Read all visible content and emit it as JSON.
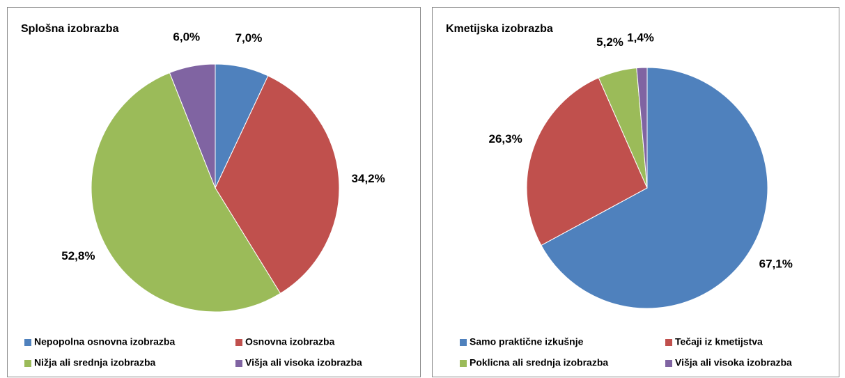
{
  "chart_data": [
    {
      "type": "pie",
      "title": "Splošna izobrazba",
      "categories": [
        "Nepopolna osnovna izobrazba",
        "Osnovna izobrazba",
        "Nižja ali srednja izobrazba",
        "Višja ali visoka izobrazba"
      ],
      "values": [
        7.0,
        34.2,
        52.8,
        6.0
      ],
      "value_labels": [
        "7,0%",
        "34,2%",
        "52,8%",
        "6,0%"
      ],
      "colors": [
        "#4f81bd",
        "#c0504d",
        "#9bbb59",
        "#8064a2"
      ]
    },
    {
      "type": "pie",
      "title": "Kmetijska izobrazba",
      "categories": [
        "Samo praktične izkušnje",
        "Tečaji iz kmetijstva",
        "Poklicna ali srednja izobrazba",
        "Višja ali visoka izobrazba"
      ],
      "values": [
        67.1,
        26.3,
        5.2,
        1.4
      ],
      "value_labels": [
        "67,1%",
        "26,3%",
        "5,2%",
        "1,4%"
      ],
      "colors": [
        "#4f81bd",
        "#c0504d",
        "#9bbb59",
        "#8064a2"
      ]
    }
  ]
}
